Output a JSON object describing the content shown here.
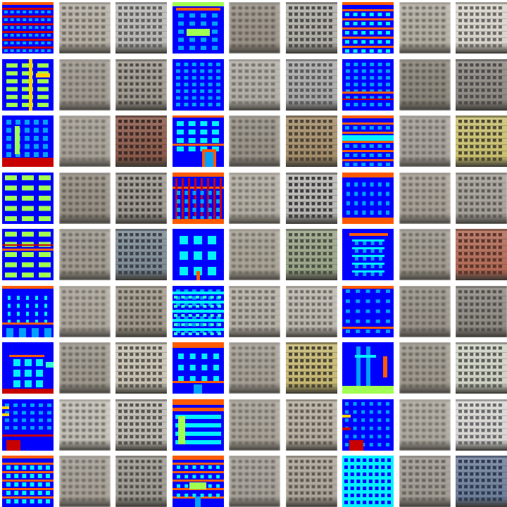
{
  "grid": {
    "rows": 9,
    "cols": 9,
    "tiles": [
      {
        "kind": "label",
        "variant": "stripes"
      },
      {
        "kind": "photo",
        "tone": "#b7b1a6",
        "win": "#6f6a63",
        "blur": 0.7
      },
      {
        "kind": "photo",
        "tone": "#b9b8b4",
        "win": "#5f5f5f",
        "blur": 0.3
      },
      {
        "kind": "label",
        "variant": "top-heavy"
      },
      {
        "kind": "photo",
        "tone": "#9e968b",
        "win": "#5b5650",
        "blur": 1.3
      },
      {
        "kind": "photo",
        "tone": "#b0aea6",
        "win": "#4d4d4b",
        "blur": 0.3
      },
      {
        "kind": "label",
        "variant": "bands"
      },
      {
        "kind": "photo",
        "tone": "#b8b2a6",
        "win": "#6a6760",
        "blur": 1.0
      },
      {
        "kind": "photo",
        "tone": "#d8d4cb",
        "win": "#6c6a66",
        "blur": 0.3
      },
      {
        "kind": "label",
        "variant": "green-col"
      },
      {
        "kind": "photo",
        "tone": "#a49e94",
        "win": "#67625c",
        "blur": 1.3
      },
      {
        "kind": "photo",
        "tone": "#a19b91",
        "win": "#49453f",
        "blur": 0.4
      },
      {
        "kind": "label",
        "variant": "grid"
      },
      {
        "kind": "photo",
        "tone": "#b3afa8",
        "win": "#74716c",
        "blur": 0.9
      },
      {
        "kind": "photo",
        "tone": "#a9a9a9",
        "win": "#5a5a5c",
        "blur": 0.3
      },
      {
        "kind": "label",
        "variant": "grid-red"
      },
      {
        "kind": "photo",
        "tone": "#8f897e",
        "win": "#55514b",
        "blur": 1.3
      },
      {
        "kind": "photo",
        "tone": "#8c8882",
        "win": "#4d4b4a",
        "blur": 0.3
      },
      {
        "kind": "label",
        "variant": "tall-win"
      },
      {
        "kind": "photo",
        "tone": "#aaa49a",
        "win": "#6f6a63",
        "blur": 1.4
      },
      {
        "kind": "photo",
        "tone": "#8b5a4a",
        "win": "#3e2b25",
        "blur": 0.3
      },
      {
        "kind": "label",
        "variant": "door"
      },
      {
        "kind": "photo",
        "tone": "#9c968b",
        "win": "#5d5852",
        "blur": 1.3
      },
      {
        "kind": "photo",
        "tone": "#a58e6a",
        "win": "#4d4234",
        "blur": 0.3
      },
      {
        "kind": "label",
        "variant": "bands-cyan"
      },
      {
        "kind": "photo",
        "tone": "#aaa59c",
        "win": "#67635d",
        "blur": 1.3
      },
      {
        "kind": "photo",
        "tone": "#c8bf6e",
        "win": "#4f4a32",
        "blur": 0.3
      },
      {
        "kind": "label",
        "variant": "green-rows"
      },
      {
        "kind": "photo",
        "tone": "#9a9388",
        "win": "#5a554e",
        "blur": 1.4
      },
      {
        "kind": "photo",
        "tone": "#9f9a92",
        "win": "#3f3c38",
        "blur": 0.4
      },
      {
        "kind": "label",
        "variant": "pillars"
      },
      {
        "kind": "photo",
        "tone": "#b5b0a5",
        "win": "#736e67",
        "blur": 1.0
      },
      {
        "kind": "photo",
        "tone": "#b8b6b2",
        "win": "#3d3d3f",
        "blur": 0.3
      },
      {
        "kind": "label",
        "variant": "top-bottom"
      },
      {
        "kind": "photo",
        "tone": "#aaa399",
        "win": "#66615a",
        "blur": 1.3
      },
      {
        "kind": "photo",
        "tone": "#a6a19a",
        "win": "#5b5853",
        "blur": 0.6
      },
      {
        "kind": "label",
        "variant": "green-rows2"
      },
      {
        "kind": "photo",
        "tone": "#a59f94",
        "win": "#625d56",
        "blur": 1.4
      },
      {
        "kind": "photo",
        "tone": "#7d8a94",
        "win": "#3b4148",
        "blur": 0.3
      },
      {
        "kind": "label",
        "variant": "cyan-blocks"
      },
      {
        "kind": "photo",
        "tone": "#aca699",
        "win": "#6b665e",
        "blur": 1.2
      },
      {
        "kind": "photo",
        "tone": "#9aa488",
        "win": "#4a5143",
        "blur": 0.3
      },
      {
        "kind": "label",
        "variant": "balcony"
      },
      {
        "kind": "photo",
        "tone": "#a39d92",
        "win": "#635e57",
        "blur": 1.3
      },
      {
        "kind": "photo",
        "tone": "#b16a56",
        "win": "#5b362c",
        "blur": 0.3
      },
      {
        "kind": "label",
        "variant": "dots"
      },
      {
        "kind": "photo",
        "tone": "#b0aa9f",
        "win": "#6e6962",
        "blur": 1.3
      },
      {
        "kind": "photo",
        "tone": "#a29a8d",
        "win": "#5a544b",
        "blur": 0.4
      },
      {
        "kind": "label",
        "variant": "grid-cyan"
      },
      {
        "kind": "photo",
        "tone": "#b6b1a7",
        "win": "#6f6b64",
        "blur": 0.9
      },
      {
        "kind": "photo",
        "tone": "#bdb8ae",
        "win": "#6d6962",
        "blur": 0.4
      },
      {
        "kind": "label",
        "variant": "grid-sparse"
      },
      {
        "kind": "photo",
        "tone": "#9d978d",
        "win": "#5f5a53",
        "blur": 1.3
      },
      {
        "kind": "photo",
        "tone": "#8f8b84",
        "win": "#4f4c48",
        "blur": 0.5
      },
      {
        "kind": "label",
        "variant": "balcony2"
      },
      {
        "kind": "photo",
        "tone": "#a29c91",
        "win": "#625d56",
        "blur": 1.4
      },
      {
        "kind": "photo",
        "tone": "#c7c2b2",
        "win": "#5a5650",
        "blur": 0.3
      },
      {
        "kind": "label",
        "variant": "mid-blocks"
      },
      {
        "kind": "photo",
        "tone": "#a9a398",
        "win": "#6a655e",
        "blur": 1.2
      },
      {
        "kind": "photo",
        "tone": "#c6b872",
        "win": "#4b4531",
        "blur": 0.3
      },
      {
        "kind": "label",
        "variant": "vertical"
      },
      {
        "kind": "photo",
        "tone": "#a19b90",
        "win": "#635e57",
        "blur": 1.3
      },
      {
        "kind": "photo",
        "tone": "#cfd2c4",
        "win": "#5c5e58",
        "blur": 0.3
      },
      {
        "kind": "label",
        "variant": "shops"
      },
      {
        "kind": "photo",
        "tone": "#c8c4ba",
        "win": "#6c6963",
        "blur": 1.0
      },
      {
        "kind": "photo",
        "tone": "#bdbab3",
        "win": "#55524d",
        "blur": 0.3
      },
      {
        "kind": "label",
        "variant": "rows-cyan"
      },
      {
        "kind": "photo",
        "tone": "#aca69b",
        "win": "#6a655e",
        "blur": 1.3
      },
      {
        "kind": "photo",
        "tone": "#b8b0a2",
        "win": "#5e584f",
        "blur": 0.4
      },
      {
        "kind": "label",
        "variant": "mixed"
      },
      {
        "kind": "photo",
        "tone": "#b2ada3",
        "win": "#6d6962",
        "blur": 1.2
      },
      {
        "kind": "photo",
        "tone": "#d7d6d2",
        "win": "#6a6b6d",
        "blur": 0.3
      },
      {
        "kind": "label",
        "variant": "cyan-grid"
      },
      {
        "kind": "photo",
        "tone": "#aaa49a",
        "win": "#67625b",
        "blur": 1.3
      },
      {
        "kind": "photo",
        "tone": "#9e9a93",
        "win": "#4e4b47",
        "blur": 0.4
      },
      {
        "kind": "label",
        "variant": "center-green"
      },
      {
        "kind": "photo",
        "tone": "#aaa59c",
        "win": "#66625b",
        "blur": 1.2
      },
      {
        "kind": "photo",
        "tone": "#ada69b",
        "win": "#5c574f",
        "blur": 0.5
      },
      {
        "kind": "label",
        "variant": "full-cyan"
      },
      {
        "kind": "photo",
        "tone": "#a09b92",
        "win": "#66625c",
        "blur": 0.8
      },
      {
        "kind": "photo",
        "tone": "#6f7f99",
        "win": "#2e3a52",
        "blur": 0.3
      }
    ]
  }
}
